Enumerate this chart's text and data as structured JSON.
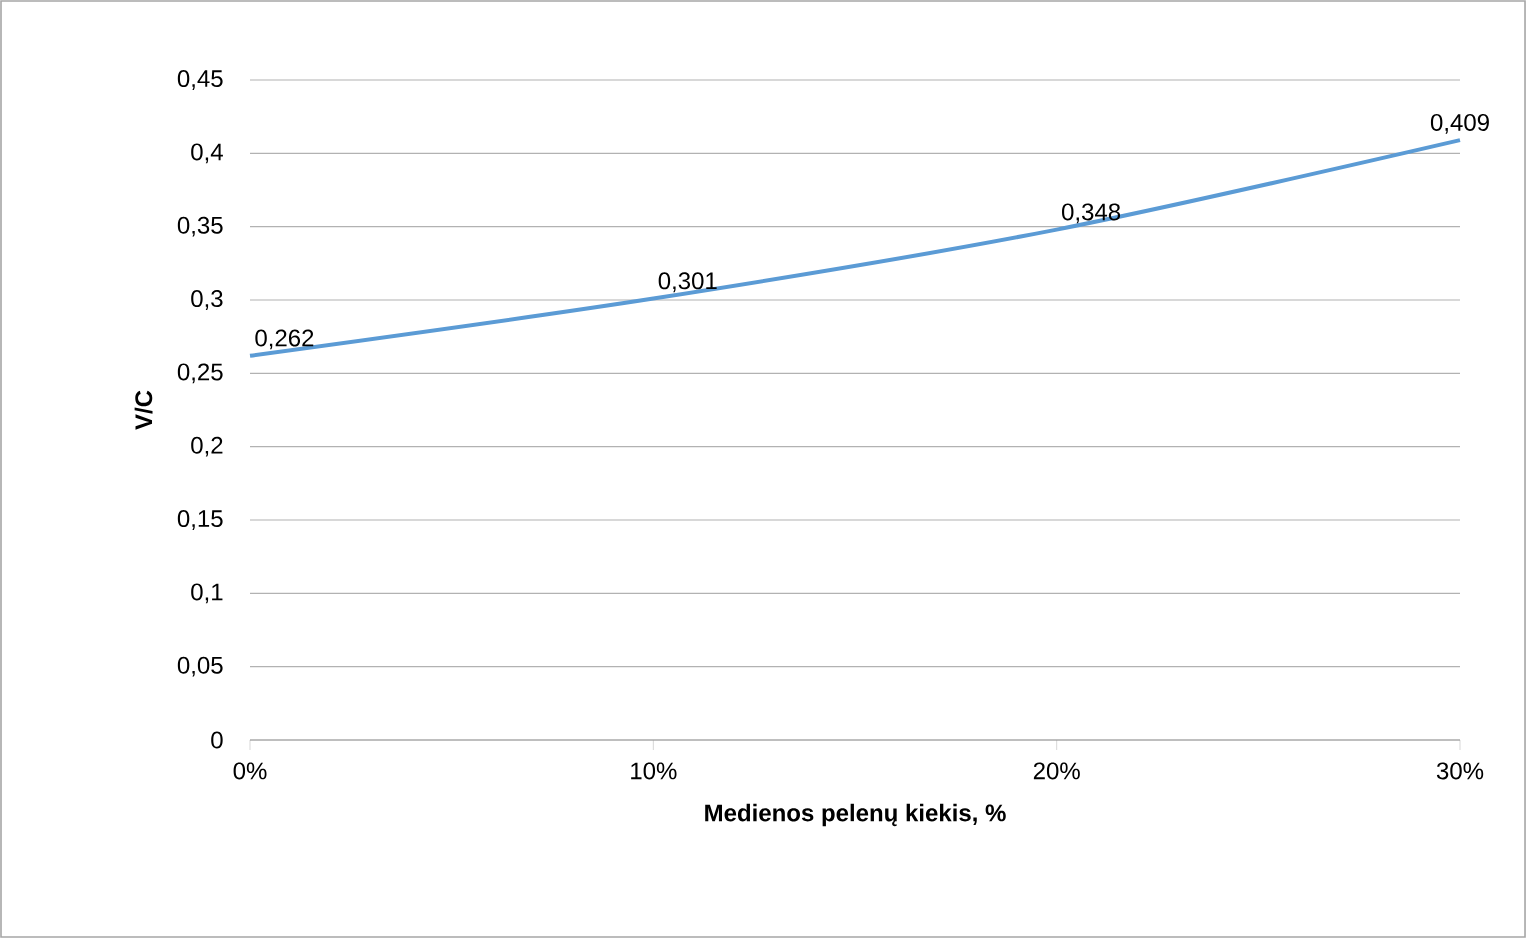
{
  "chart_data": {
    "type": "line",
    "xlabel": "Medienos pelenų kiekis, %",
    "ylabel": "V/C",
    "x": [
      0,
      10,
      20,
      30
    ],
    "series": [
      {
        "color": "#5b9bd5",
        "values": [
          0.262,
          0.301,
          0.348,
          0.409
        ],
        "value_labels": [
          "0,262",
          "0,301",
          "0,348",
          "0,409"
        ]
      }
    ],
    "xlim": [
      0,
      30
    ],
    "xticks": [
      {
        "value": 0,
        "label": "0%"
      },
      {
        "value": 10,
        "label": "10%"
      },
      {
        "value": 20,
        "label": "20%"
      },
      {
        "value": 30,
        "label": "30%"
      }
    ],
    "ylim": [
      0,
      0.45
    ],
    "yticks": [
      0,
      {
        "value": 0.05,
        "label": "0,05"
      },
      {
        "value": 0.1,
        "label": "0,1"
      },
      {
        "value": 0.15,
        "label": "0,15"
      },
      {
        "value": 0.2,
        "label": "0,2"
      },
      {
        "value": 0.25,
        "label": "0,25"
      },
      {
        "value": 0.3,
        "label": "0,3"
      },
      {
        "value": 0.35,
        "label": "0,35"
      },
      {
        "value": 0.4,
        "label": "0,4"
      },
      {
        "value": 0.45,
        "label": "0,45"
      }
    ],
    "grid": "y",
    "marker": "none",
    "line_style": "solid"
  }
}
